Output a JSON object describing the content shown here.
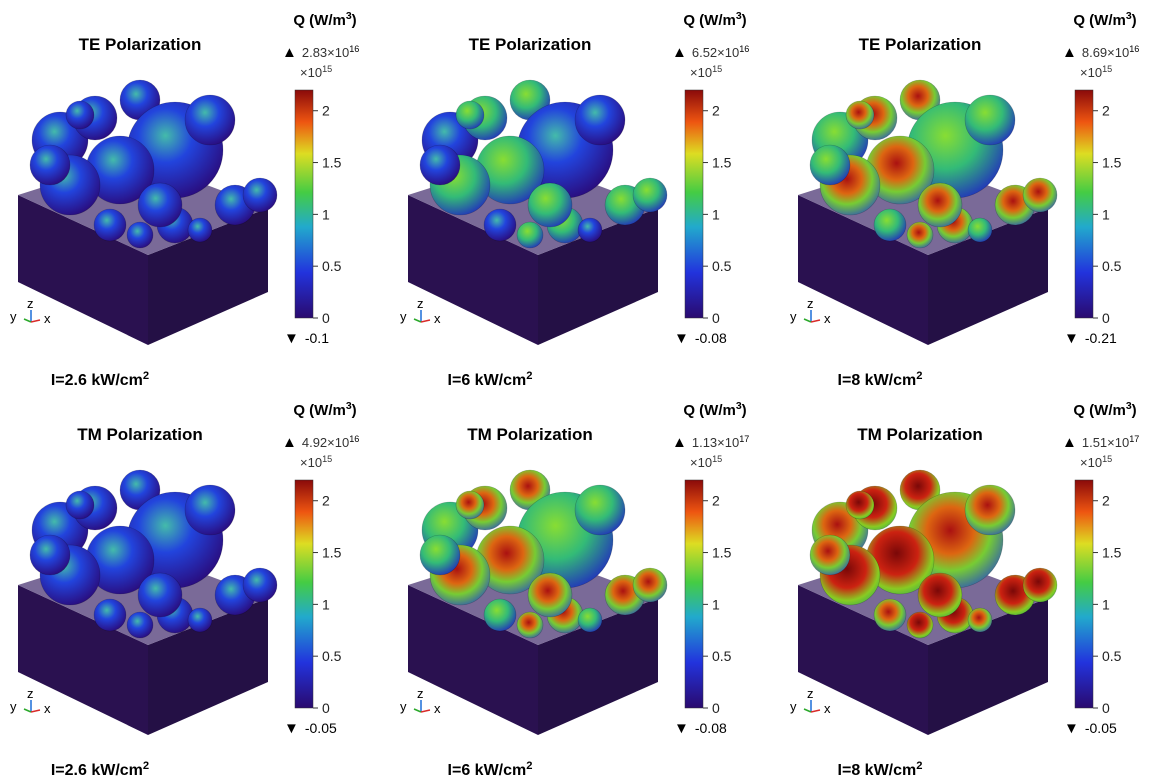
{
  "panels": [
    {
      "title": "TE Polarization",
      "unit": {
        "text": "Q (W/m",
        "sup": "3",
        "close": ")"
      },
      "max": {
        "symbol": "▲",
        "base": "2.83×10",
        "exp": "16"
      },
      "multiplier": {
        "base": "×10",
        "exp": "15"
      },
      "ticks": [
        0,
        0.5,
        1,
        1.5,
        2
      ],
      "min": {
        "symbol": "▼",
        "value": -0.1
      },
      "intensity": {
        "text": "I=2.6 kW/cm",
        "sup": "2"
      },
      "axes": {
        "y": "y",
        "z": "z",
        "x": "x"
      }
    },
    {
      "title": "TE Polarization",
      "unit": {
        "text": "Q (W/m",
        "sup": "3",
        "close": ")"
      },
      "max": {
        "symbol": "▲",
        "base": "6.52×10",
        "exp": "16"
      },
      "multiplier": {
        "base": "×10",
        "exp": "15"
      },
      "ticks": [
        0,
        0.5,
        1,
        1.5,
        2
      ],
      "min": {
        "symbol": "▼",
        "value": -0.08
      },
      "intensity": {
        "text": "I=6 kW/cm",
        "sup": "2"
      },
      "axes": {
        "y": "y",
        "z": "z",
        "x": "x"
      }
    },
    {
      "title": "TE Polarization",
      "unit": {
        "text": "Q (W/m",
        "sup": "3",
        "close": ")"
      },
      "max": {
        "symbol": "▲",
        "base": "8.69×10",
        "exp": "16"
      },
      "multiplier": {
        "base": "×10",
        "exp": "15"
      },
      "ticks": [
        0,
        0.5,
        1,
        1.5,
        2
      ],
      "min": {
        "symbol": "▼",
        "value": -0.21
      },
      "intensity": {
        "text": "I=8 kW/cm",
        "sup": "2"
      },
      "axes": {
        "y": "y",
        "z": "z",
        "x": "x"
      }
    },
    {
      "title": "TM Polarization",
      "unit": {
        "text": "Q (W/m",
        "sup": "3",
        "close": ")"
      },
      "max": {
        "symbol": "▲",
        "base": "4.92×10",
        "exp": "16"
      },
      "multiplier": {
        "base": "×10",
        "exp": "15"
      },
      "ticks": [
        0,
        0.5,
        1,
        1.5,
        2
      ],
      "min": {
        "symbol": "▼",
        "value": -0.05
      },
      "intensity": {
        "text": "I=2.6 kW/cm",
        "sup": "2"
      },
      "axes": {
        "y": "y",
        "z": "z",
        "x": "x"
      }
    },
    {
      "title": "TM Polarization",
      "unit": {
        "text": "Q (W/m",
        "sup": "3",
        "close": ")"
      },
      "max": {
        "symbol": "▲",
        "base": "1.13×10",
        "exp": "17"
      },
      "multiplier": {
        "base": "×10",
        "exp": "15"
      },
      "ticks": [
        0,
        0.5,
        1,
        1.5,
        2
      ],
      "min": {
        "symbol": "▼",
        "value": -0.08
      },
      "intensity": {
        "text": "I=6 kW/cm",
        "sup": "2"
      },
      "axes": {
        "y": "y",
        "z": "z",
        "x": "x"
      }
    },
    {
      "title": "TM Polarization",
      "unit": {
        "text": "Q (W/m",
        "sup": "3",
        "close": ")"
      },
      "max": {
        "symbol": "▲",
        "base": "1.51×10",
        "exp": "17"
      },
      "multiplier": {
        "base": "×10",
        "exp": "15"
      },
      "ticks": [
        0,
        0.5,
        1,
        1.5,
        2
      ],
      "min": {
        "symbol": "▼",
        "value": -0.05
      },
      "intensity": {
        "text": "I=8 kW/cm",
        "sup": "2"
      },
      "axes": {
        "y": "y",
        "z": "z",
        "x": "x"
      }
    }
  ]
}
